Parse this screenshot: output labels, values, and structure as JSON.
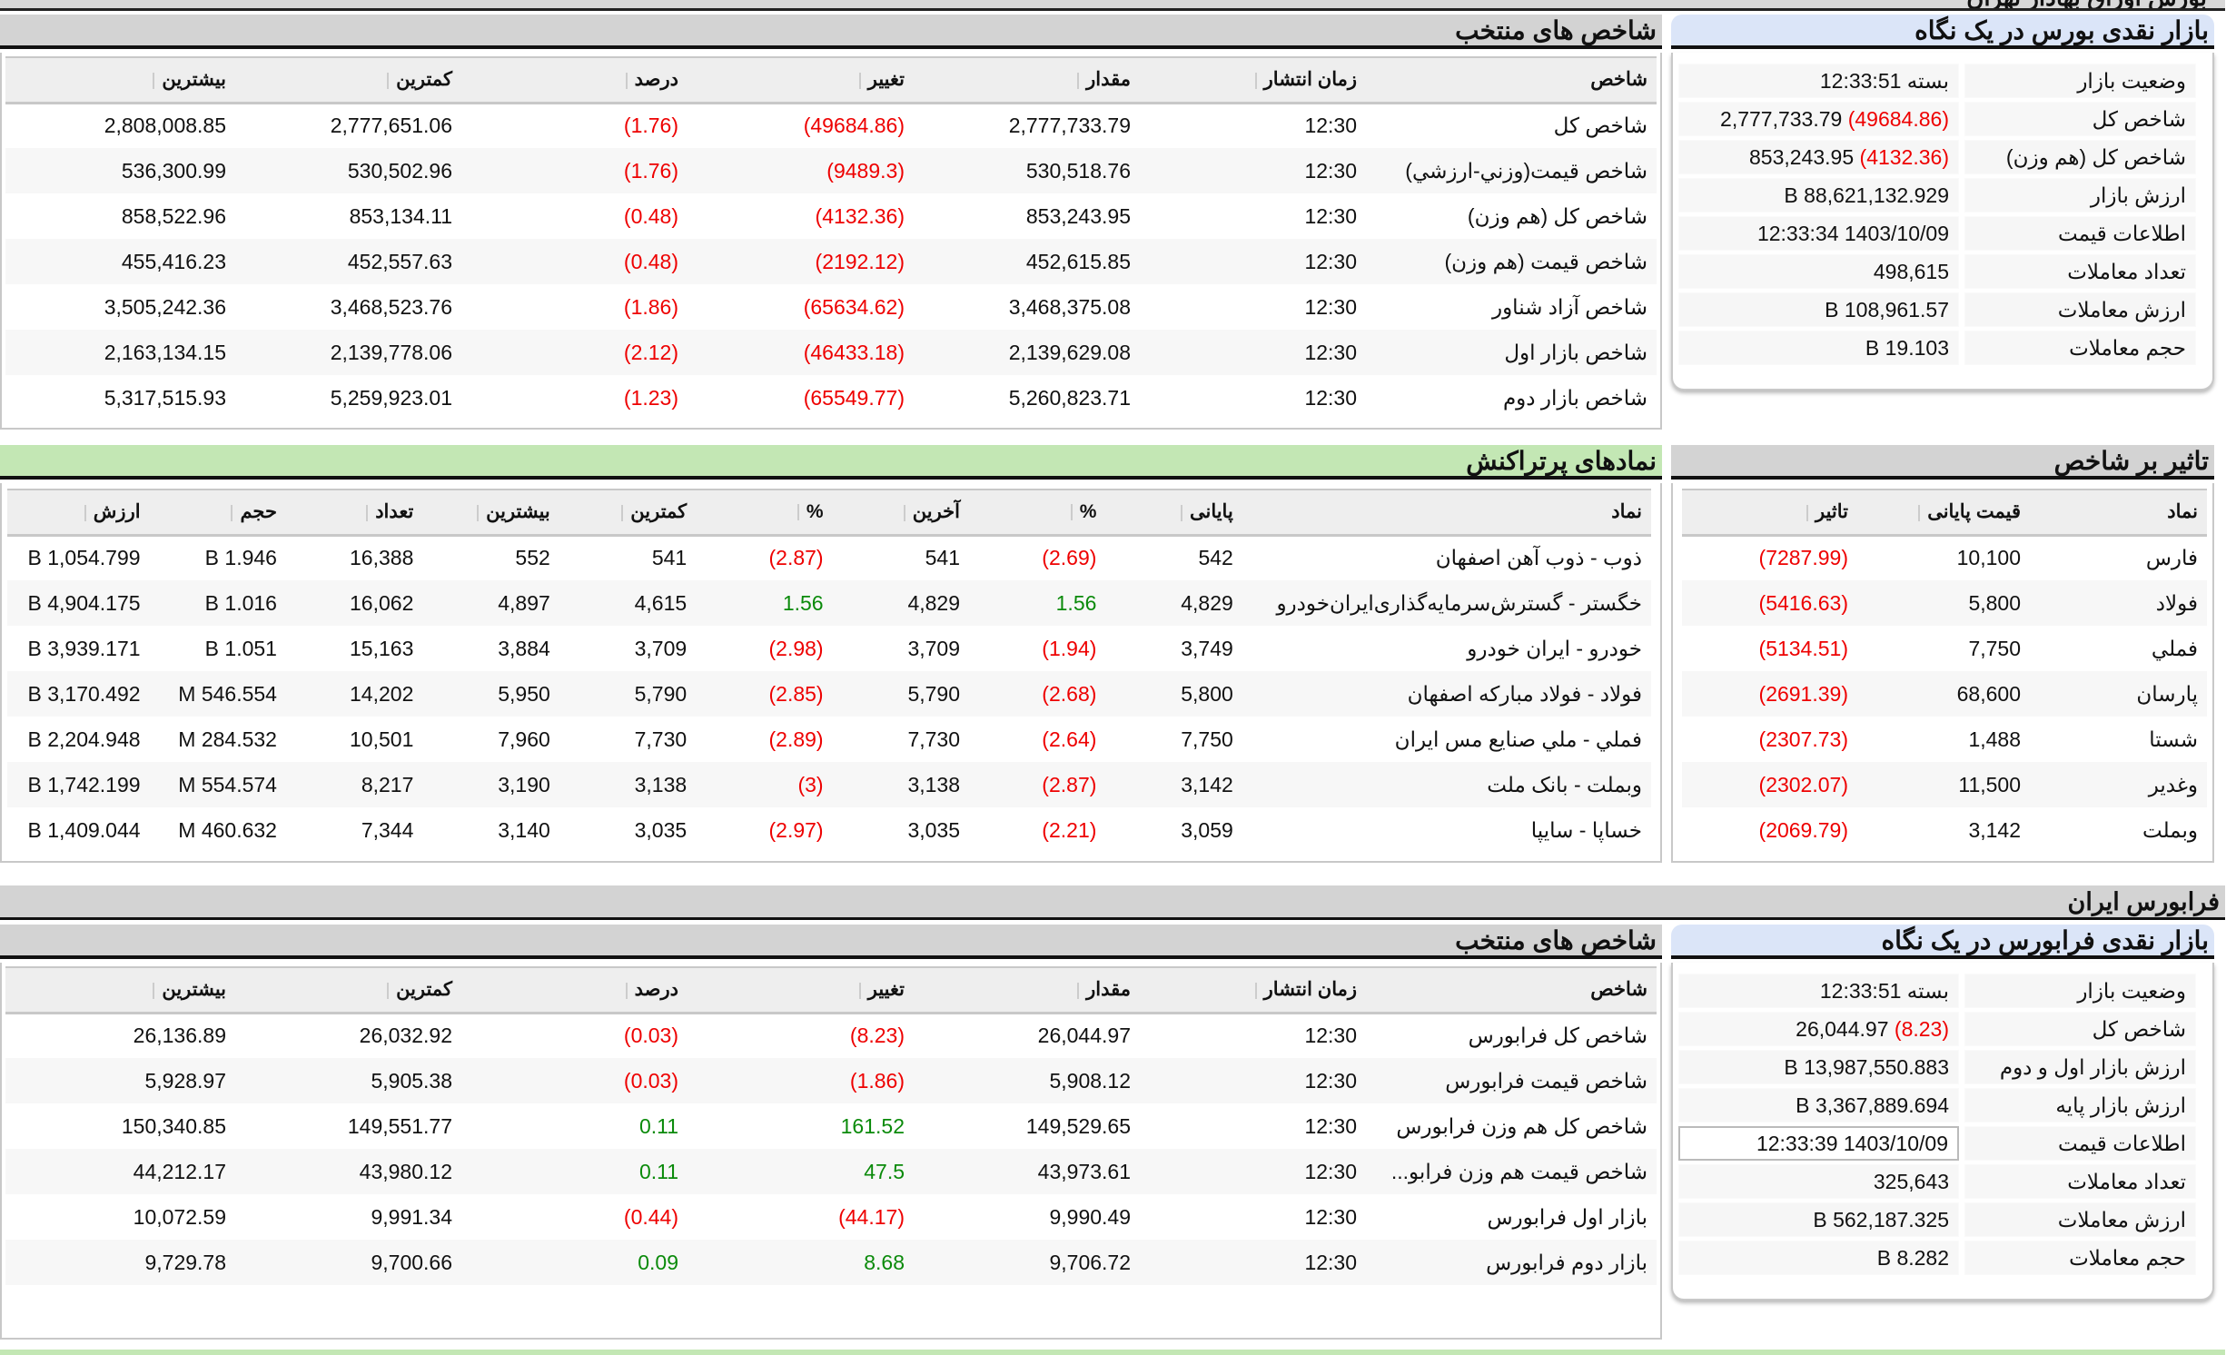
{
  "banner": "بورس اوراق بهادار تهران",
  "tehran": {
    "summary": {
      "title": "بازار نقدی بورس در یک نگاه",
      "rows": [
        [
          "وضعیت بازار",
          "بسته 12:33:51",
          ""
        ],
        [
          "شاخص کل",
          "2,777,733.79",
          "(49684.86)"
        ],
        [
          "شاخص کل (هم وزن)",
          "853,243.95",
          "(4132.36)"
        ],
        [
          "ارزش بازار",
          "88,621,132.929 B",
          ""
        ],
        [
          "اطلاعات قیمت",
          "1403/10/09 12:33:34",
          ""
        ],
        [
          "تعداد معاملات",
          "498,615",
          ""
        ],
        [
          "ارزش معاملات",
          "108,961.57 B",
          ""
        ],
        [
          "حجم معاملات",
          "19.103 B",
          ""
        ]
      ]
    },
    "indices": {
      "title": "شاخص های منتخب",
      "headers": [
        "شاخص",
        "زمان انتشار",
        "مقدار",
        "تغییر",
        "درصد",
        "کمترین",
        "بیشترین"
      ],
      "rows": [
        [
          "شاخص کل",
          "12:30",
          "2,777,733.79",
          "(49684.86)",
          "(1.76)",
          "2,777,651.06",
          "2,808,008.85"
        ],
        [
          "شاخص قيمت(وزني-ارزشي)",
          "12:30",
          "530,518.76",
          "(9489.3)",
          "(1.76)",
          "530,502.96",
          "536,300.99"
        ],
        [
          "شاخص کل (هم وزن)",
          "12:30",
          "853,243.95",
          "(4132.36)",
          "(0.48)",
          "853,134.11",
          "858,522.96"
        ],
        [
          "شاخص قیمت (هم وزن)",
          "12:30",
          "452,615.85",
          "(2192.12)",
          "(0.48)",
          "452,557.63",
          "455,416.23"
        ],
        [
          "شاخص آزاد شناور",
          "12:30",
          "3,468,375.08",
          "(65634.62)",
          "(1.86)",
          "3,468,523.76",
          "3,505,242.36"
        ],
        [
          "شاخص بازار اول",
          "12:30",
          "2,139,629.08",
          "(46433.18)",
          "(2.12)",
          "2,139,778.06",
          "2,163,134.15"
        ],
        [
          "شاخص بازار دوم",
          "12:30",
          "5,260,823.71",
          "(65549.77)",
          "(1.23)",
          "5,259,923.01",
          "5,317,515.93"
        ]
      ]
    },
    "active": {
      "title": "نمادهای پرتراکنش",
      "headers": [
        "نماد",
        "پایانی",
        "%",
        "آخرین",
        "%",
        "کمترین",
        "بیشترین",
        "تعداد",
        "حجم",
        "ارزش"
      ],
      "rows": [
        [
          "ذوب - ذوب آهن اصفهان",
          "542",
          "(2.69)",
          "541",
          "(2.87)",
          "541",
          "552",
          "16,388",
          "1.946 B",
          "1,054.799 B"
        ],
        [
          "خگستر - گسترش‌سرمایه‌گذاری‌ایران‌خودرو",
          "4,829",
          "1.56",
          "4,829",
          "1.56",
          "4,615",
          "4,897",
          "16,062",
          "1.016 B",
          "4,904.175 B"
        ],
        [
          "خودرو - ایران‌ خودرو",
          "3,749",
          "(1.94)",
          "3,709",
          "(2.98)",
          "3,709",
          "3,884",
          "15,163",
          "1.051 B",
          "3,939.171 B"
        ],
        [
          "فولاد - فولاد مبارکه اصفهان",
          "5,800",
          "(2.68)",
          "5,790",
          "(2.85)",
          "5,790",
          "5,950",
          "14,202",
          "546.554 M",
          "3,170.492 B"
        ],
        [
          "فملي - ملي صنايع مس ايران",
          "7,750",
          "(2.64)",
          "7,730",
          "(2.89)",
          "7,730",
          "7,960",
          "10,501",
          "284.532 M",
          "2,204.948 B"
        ],
        [
          "وبملت - بانک ملت",
          "3,142",
          "(2.87)",
          "3,138",
          "(3)",
          "3,138",
          "3,190",
          "8,217",
          "554.574 M",
          "1,742.199 B"
        ],
        [
          "خساپا - سايپا",
          "3,059",
          "(2.21)",
          "3,035",
          "(2.97)",
          "3,035",
          "3,140",
          "7,344",
          "460.632 M",
          "1,409.044 B"
        ]
      ]
    },
    "impact": {
      "title": "تاثیر بر شاخص",
      "headers": [
        "نماد",
        "قیمت پایانی",
        "تاثیر"
      ],
      "rows": [
        [
          "فارس",
          "10,100",
          "(7287.99)"
        ],
        [
          "فولاد",
          "5,800",
          "(5416.63)"
        ],
        [
          "فملي",
          "7,750",
          "(5134.51)"
        ],
        [
          "پارسان",
          "68,600",
          "(2691.39)"
        ],
        [
          "شستا",
          "1,488",
          "(2307.73)"
        ],
        [
          "وغدير",
          "11,500",
          "(2302.07)"
        ],
        [
          "وبملت",
          "3,142",
          "(2069.79)"
        ]
      ]
    }
  },
  "farabourse": {
    "section_title": "فرابورس ایران",
    "summary": {
      "title": "بازار نقدی فرابورس در یک نگاه",
      "rows": [
        [
          "وضعیت بازار",
          "بسته 12:33:51",
          ""
        ],
        [
          "شاخص کل",
          "26,044.97",
          "(8.23)"
        ],
        [
          "ارزش بازار اول و دوم",
          "13,987,550.883 B",
          ""
        ],
        [
          "ارزش بازار پایه",
          "3,367,889.694 B",
          ""
        ],
        [
          "اطلاعات قیمت",
          "1403/10/09 12:33:39",
          ""
        ],
        [
          "تعداد معاملات",
          "325,643",
          ""
        ],
        [
          "ارزش معاملات",
          "562,187.325 B",
          ""
        ],
        [
          "حجم معاملات",
          "8.282 B",
          ""
        ]
      ]
    },
    "indices": {
      "title": "شاخص های منتخب",
      "headers": [
        "شاخص",
        "زمان انتشار",
        "مقدار",
        "تغییر",
        "درصد",
        "کمترین",
        "بیشترین"
      ],
      "rows": [
        [
          "شاخص کل فرابورس",
          "12:30",
          "26,044.97",
          "(8.23)",
          "(0.03)",
          "26,032.92",
          "26,136.89"
        ],
        [
          "شاخص قیمت فرابورس",
          "12:30",
          "5,908.12",
          "(1.86)",
          "(0.03)",
          "5,905.38",
          "5,928.97"
        ],
        [
          "شاخص کل هم وزن فرابورس",
          "12:30",
          "149,529.65",
          "161.52",
          "0.11",
          "149,551.77",
          "150,340.85"
        ],
        [
          "شاخص قیمت هم وزن فرابو...",
          "12:30",
          "43,973.61",
          "47.5",
          "0.11",
          "43,980.12",
          "44,212.17"
        ],
        [
          "بازار اول فرابورس",
          "12:30",
          "9,990.49",
          "(44.17)",
          "(0.44)",
          "9,991.34",
          "10,072.59"
        ],
        [
          "بازار دوم فرابورس",
          "12:30",
          "9,706.72",
          "8.68",
          "0.09",
          "9,700.66",
          "9,729.78"
        ]
      ]
    }
  },
  "colors": {
    "negative": "#e00000",
    "positive": "#0a8a0a",
    "header_gray": "#d3d3d3",
    "header_blue": "#dbe5f8",
    "header_green": "#c3e7b4"
  }
}
